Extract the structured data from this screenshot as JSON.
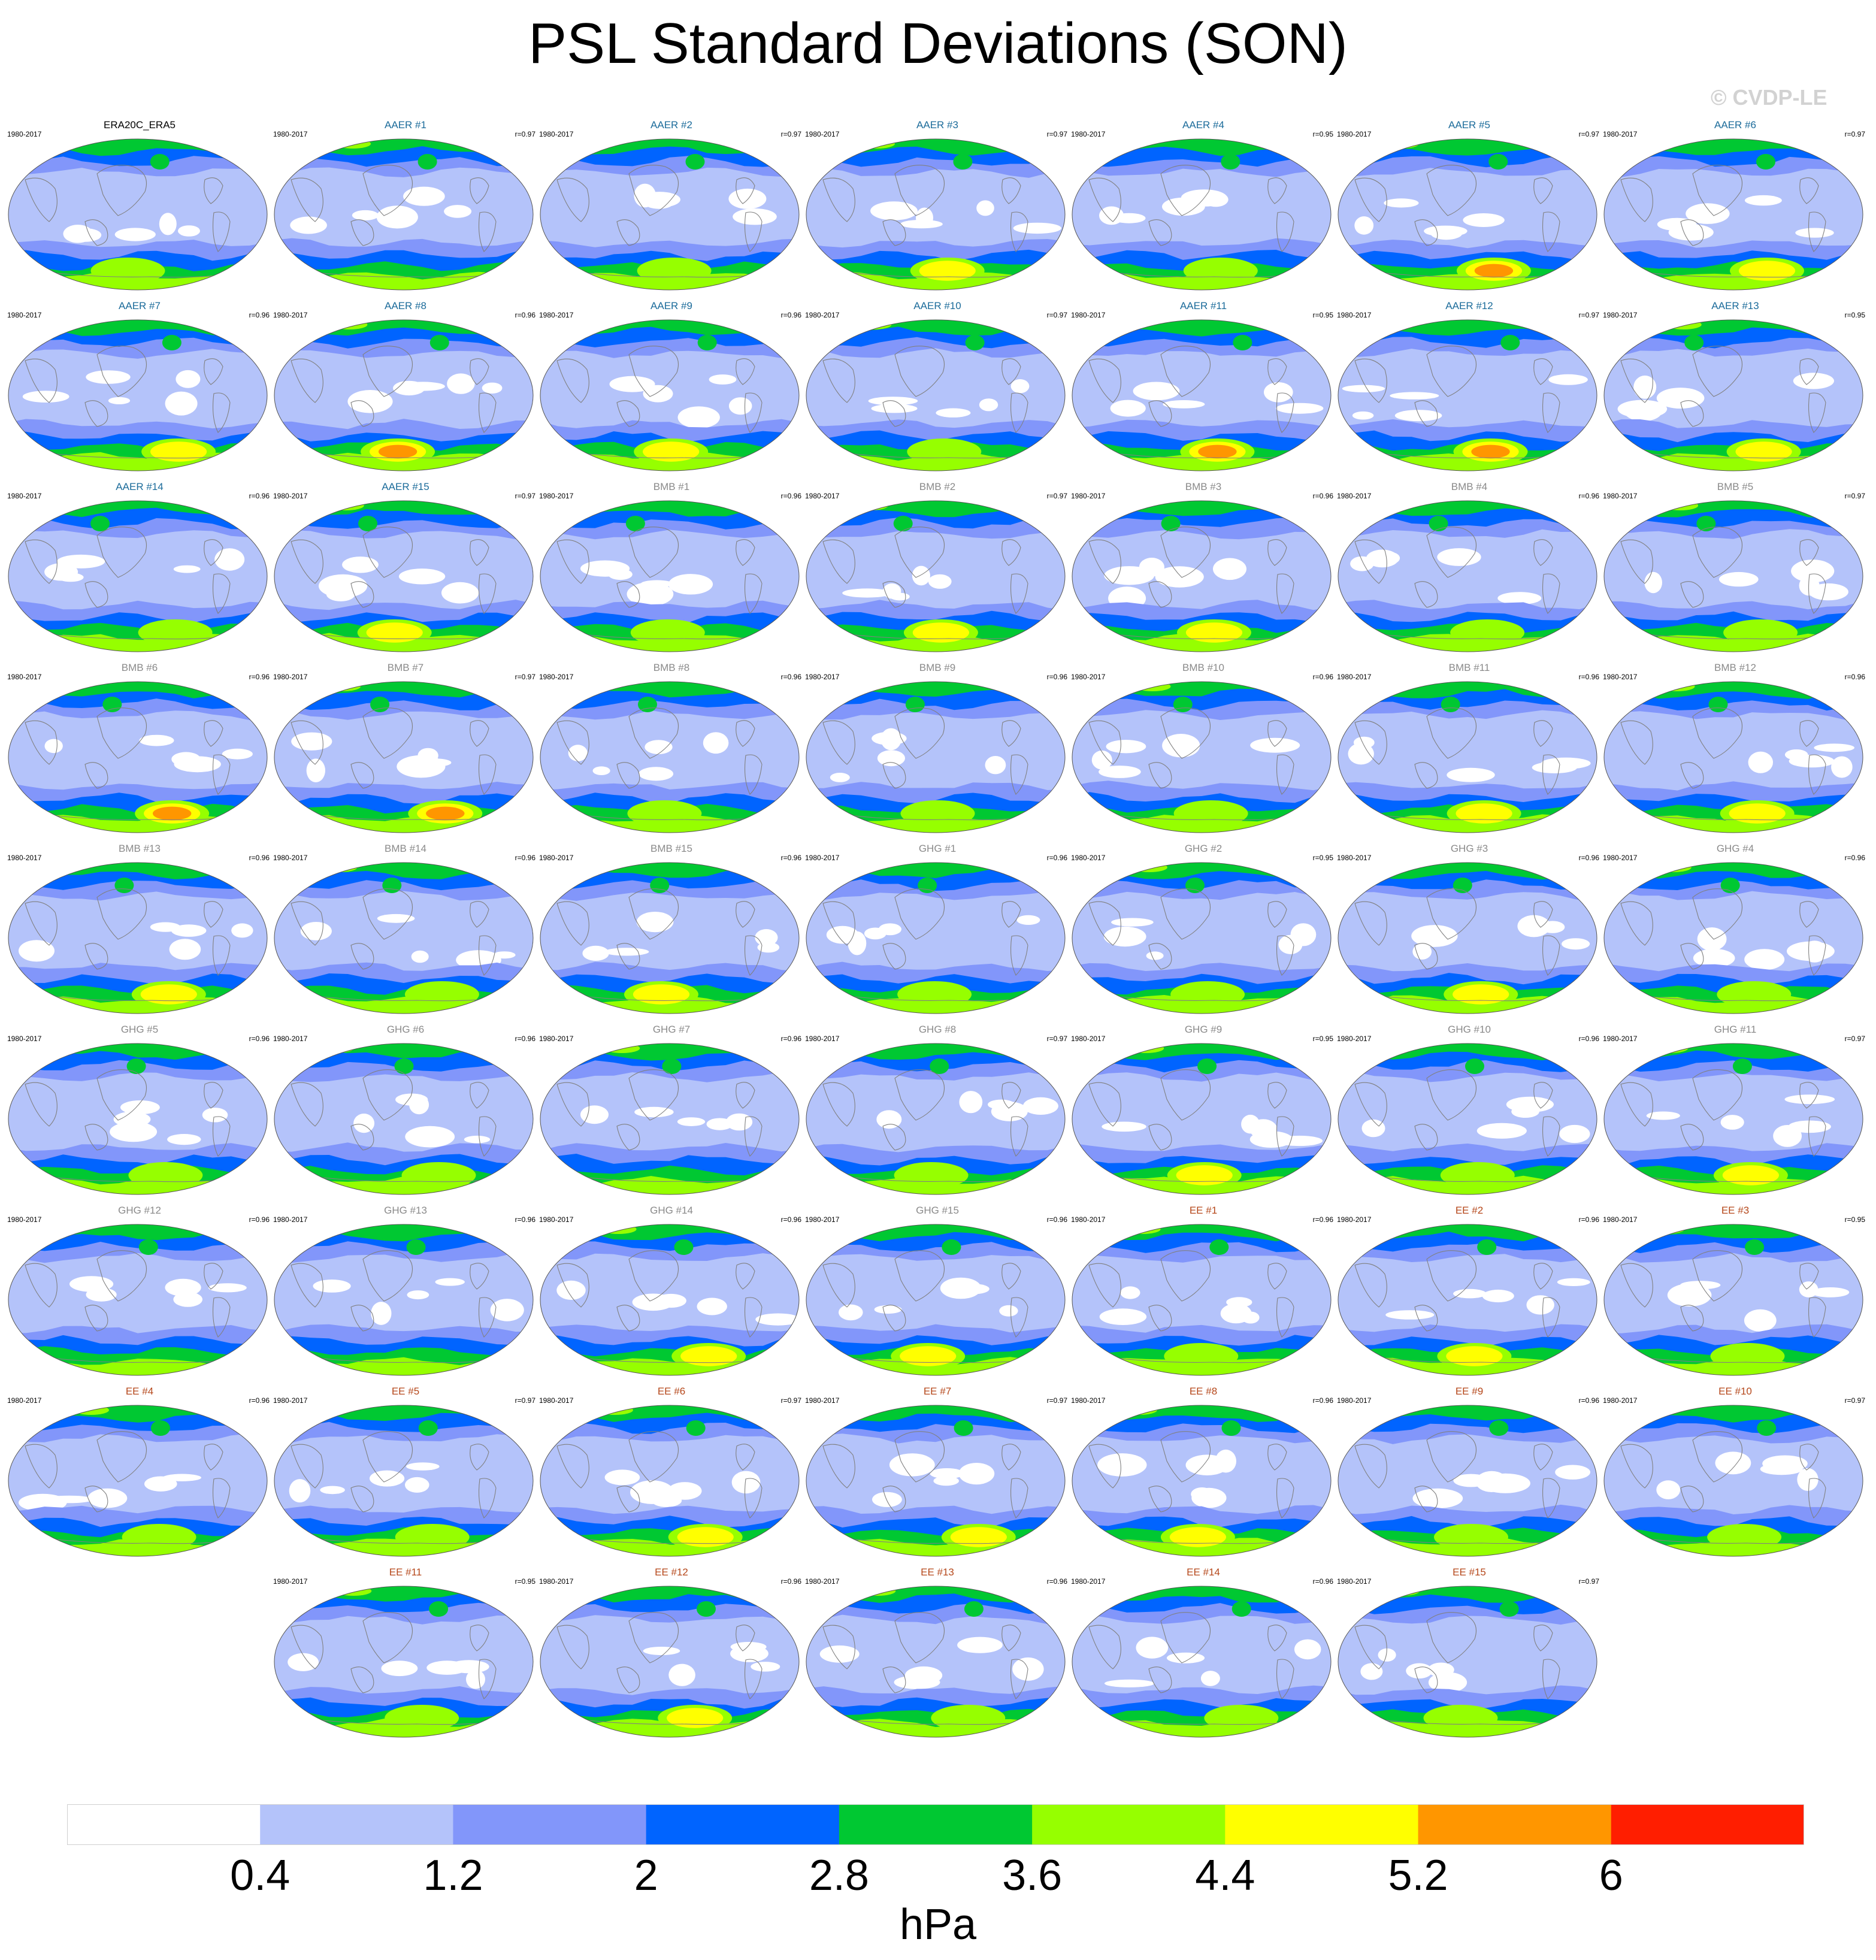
{
  "title": "PSL Standard Deviations (SON)",
  "watermark": "© CVDP-LE",
  "colors": {
    "reference_title": "#000000",
    "AAER": "#1b6b9a",
    "BMB": "#8a8a8a",
    "GHG": "#8a8a8a",
    "EE": "#b5471a",
    "coastline": "#808080"
  },
  "chart_data": {
    "type": "heatmap",
    "map_projection": "Robinson (global, Pacific-centered)",
    "season": "SON",
    "variable": "PSL",
    "period": "1980-2017",
    "panels": [
      {
        "title": "ERA20C_ERA5",
        "group": "reference",
        "period": "1980-2017",
        "r": "",
        "peak": 5
      },
      {
        "title": "AAER #1",
        "group": "AAER",
        "period": "1980-2017",
        "r": "r=0.97",
        "peak": 4
      },
      {
        "title": "AAER #2",
        "group": "AAER",
        "period": "1980-2017",
        "r": "r=0.97",
        "peak": 5
      },
      {
        "title": "AAER #3",
        "group": "AAER",
        "period": "1980-2017",
        "r": "r=0.97",
        "peak": 6
      },
      {
        "title": "AAER #4",
        "group": "AAER",
        "period": "1980-2017",
        "r": "r=0.95",
        "peak": 5
      },
      {
        "title": "AAER #5",
        "group": "AAER",
        "period": "1980-2017",
        "r": "r=0.97",
        "peak": 7
      },
      {
        "title": "AAER #6",
        "group": "AAER",
        "period": "1980-2017",
        "r": "r=0.97",
        "peak": 6
      },
      {
        "title": "AAER #7",
        "group": "AAER",
        "period": "1980-2017",
        "r": "r=0.96",
        "peak": 6
      },
      {
        "title": "AAER #8",
        "group": "AAER",
        "period": "1980-2017",
        "r": "r=0.96",
        "peak": 7
      },
      {
        "title": "AAER #9",
        "group": "AAER",
        "period": "1980-2017",
        "r": "r=0.96",
        "peak": 6
      },
      {
        "title": "AAER #10",
        "group": "AAER",
        "period": "1980-2017",
        "r": "r=0.97",
        "peak": 5
      },
      {
        "title": "AAER #11",
        "group": "AAER",
        "period": "1980-2017",
        "r": "r=0.95",
        "peak": 7
      },
      {
        "title": "AAER #12",
        "group": "AAER",
        "period": "1980-2017",
        "r": "r=0.97",
        "peak": 7
      },
      {
        "title": "AAER #13",
        "group": "AAER",
        "period": "1980-2017",
        "r": "r=0.95",
        "peak": 6
      },
      {
        "title": "AAER #14",
        "group": "AAER",
        "period": "1980-2017",
        "r": "r=0.96",
        "peak": 5
      },
      {
        "title": "AAER #15",
        "group": "AAER",
        "period": "1980-2017",
        "r": "r=0.97",
        "peak": 6
      },
      {
        "title": "BMB #1",
        "group": "BMB",
        "period": "1980-2017",
        "r": "r=0.96",
        "peak": 5
      },
      {
        "title": "BMB #2",
        "group": "BMB",
        "period": "1980-2017",
        "r": "r=0.97",
        "peak": 6
      },
      {
        "title": "BMB #3",
        "group": "BMB",
        "period": "1980-2017",
        "r": "r=0.96",
        "peak": 6
      },
      {
        "title": "BMB #4",
        "group": "BMB",
        "period": "1980-2017",
        "r": "r=0.96",
        "peak": 5
      },
      {
        "title": "BMB #5",
        "group": "BMB",
        "period": "1980-2017",
        "r": "r=0.97",
        "peak": 5
      },
      {
        "title": "BMB #6",
        "group": "BMB",
        "period": "1980-2017",
        "r": "r=0.96",
        "peak": 7
      },
      {
        "title": "BMB #7",
        "group": "BMB",
        "period": "1980-2017",
        "r": "r=0.97",
        "peak": 7
      },
      {
        "title": "BMB #8",
        "group": "BMB",
        "period": "1980-2017",
        "r": "r=0.96",
        "peak": 5
      },
      {
        "title": "BMB #9",
        "group": "BMB",
        "period": "1980-2017",
        "r": "r=0.96",
        "peak": 5
      },
      {
        "title": "BMB #10",
        "group": "BMB",
        "period": "1980-2017",
        "r": "r=0.96",
        "peak": 5
      },
      {
        "title": "BMB #11",
        "group": "BMB",
        "period": "1980-2017",
        "r": "r=0.96",
        "peak": 6
      },
      {
        "title": "BMB #12",
        "group": "BMB",
        "period": "1980-2017",
        "r": "r=0.96",
        "peak": 6
      },
      {
        "title": "BMB #13",
        "group": "BMB",
        "period": "1980-2017",
        "r": "r=0.96",
        "peak": 6
      },
      {
        "title": "BMB #14",
        "group": "BMB",
        "period": "1980-2017",
        "r": "r=0.96",
        "peak": 5
      },
      {
        "title": "BMB #15",
        "group": "BMB",
        "period": "1980-2017",
        "r": "r=0.96",
        "peak": 6
      },
      {
        "title": "GHG #1",
        "group": "GHG",
        "period": "1980-2017",
        "r": "r=0.96",
        "peak": 5
      },
      {
        "title": "GHG #2",
        "group": "GHG",
        "period": "1980-2017",
        "r": "r=0.95",
        "peak": 5
      },
      {
        "title": "GHG #3",
        "group": "GHG",
        "period": "1980-2017",
        "r": "r=0.96",
        "peak": 6
      },
      {
        "title": "GHG #4",
        "group": "GHG",
        "period": "1980-2017",
        "r": "r=0.96",
        "peak": 5
      },
      {
        "title": "GHG #5",
        "group": "GHG",
        "period": "1980-2017",
        "r": "r=0.96",
        "peak": 5
      },
      {
        "title": "GHG #6",
        "group": "GHG",
        "period": "1980-2017",
        "r": "r=0.96",
        "peak": 5
      },
      {
        "title": "GHG #7",
        "group": "GHG",
        "period": "1980-2017",
        "r": "r=0.96",
        "peak": 4
      },
      {
        "title": "GHG #8",
        "group": "GHG",
        "period": "1980-2017",
        "r": "r=0.97",
        "peak": 5
      },
      {
        "title": "GHG #9",
        "group": "GHG",
        "period": "1980-2017",
        "r": "r=0.95",
        "peak": 6
      },
      {
        "title": "GHG #10",
        "group": "GHG",
        "period": "1980-2017",
        "r": "r=0.96",
        "peak": 5
      },
      {
        "title": "GHG #11",
        "group": "GHG",
        "period": "1980-2017",
        "r": "r=0.97",
        "peak": 6
      },
      {
        "title": "GHG #12",
        "group": "GHG",
        "period": "1980-2017",
        "r": "r=0.96",
        "peak": 4
      },
      {
        "title": "GHG #13",
        "group": "GHG",
        "period": "1980-2017",
        "r": "r=0.96",
        "peak": 4
      },
      {
        "title": "GHG #14",
        "group": "GHG",
        "period": "1980-2017",
        "r": "r=0.96",
        "peak": 6
      },
      {
        "title": "GHG #15",
        "group": "GHG",
        "period": "1980-2017",
        "r": "r=0.96",
        "peak": 6
      },
      {
        "title": "EE #1",
        "group": "EE",
        "period": "1980-2017",
        "r": "r=0.96",
        "peak": 5
      },
      {
        "title": "EE #2",
        "group": "EE",
        "period": "1980-2017",
        "r": "r=0.96",
        "peak": 6
      },
      {
        "title": "EE #3",
        "group": "EE",
        "period": "1980-2017",
        "r": "r=0.95",
        "peak": 5
      },
      {
        "title": "EE #4",
        "group": "EE",
        "period": "1980-2017",
        "r": "r=0.96",
        "peak": 5
      },
      {
        "title": "EE #5",
        "group": "EE",
        "period": "1980-2017",
        "r": "r=0.97",
        "peak": 5
      },
      {
        "title": "EE #6",
        "group": "EE",
        "period": "1980-2017",
        "r": "r=0.97",
        "peak": 6
      },
      {
        "title": "EE #7",
        "group": "EE",
        "period": "1980-2017",
        "r": "r=0.97",
        "peak": 6
      },
      {
        "title": "EE #8",
        "group": "EE",
        "period": "1980-2017",
        "r": "r=0.96",
        "peak": 6
      },
      {
        "title": "EE #9",
        "group": "EE",
        "period": "1980-2017",
        "r": "r=0.96",
        "peak": 5
      },
      {
        "title": "EE #10",
        "group": "EE",
        "period": "1980-2017",
        "r": "r=0.97",
        "peak": 5
      },
      {
        "title": "EE #11",
        "group": "EE",
        "period": "1980-2017",
        "r": "r=0.95",
        "peak": 5
      },
      {
        "title": "EE #12",
        "group": "EE",
        "period": "1980-2017",
        "r": "r=0.96",
        "peak": 6
      },
      {
        "title": "EE #13",
        "group": "EE",
        "period": "1980-2017",
        "r": "r=0.96",
        "peak": 5
      },
      {
        "title": "EE #14",
        "group": "EE",
        "period": "1980-2017",
        "r": "r=0.96",
        "peak": 5
      },
      {
        "title": "EE #15",
        "group": "EE",
        "period": "1980-2017",
        "r": "r=0.97",
        "peak": 5
      }
    ],
    "colorbar": {
      "ticks": [
        "0.4",
        "1.2",
        "2",
        "2.8",
        "3.6",
        "4.4",
        "5.2",
        "6"
      ],
      "levels": [
        0.4,
        1.2,
        2,
        2.8,
        3.6,
        4.4,
        5.2,
        6
      ],
      "colors": [
        "#ffffff",
        "#b4c3fa",
        "#8296fa",
        "#0064ff",
        "#00c832",
        "#96ff00",
        "#ffff00",
        "#ff9600",
        "#ff1e00"
      ],
      "units": "hPa"
    }
  }
}
